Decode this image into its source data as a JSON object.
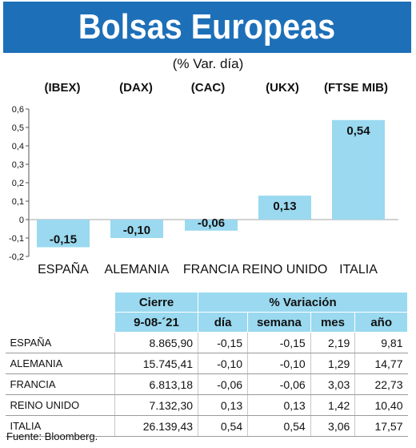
{
  "header": {
    "title": "Bolsas Europeas",
    "subtitle": "(% Var. día)"
  },
  "chart_data": {
    "type": "bar",
    "categories": [
      "ESPAÑA",
      "ALEMANIA",
      "FRANCIA",
      "REINO UNIDO",
      "ITALIA"
    ],
    "index_labels": [
      "(IBEX)",
      "(DAX)",
      "(CAC)",
      "(UKX)",
      "(FTSE MIB)"
    ],
    "values": [
      -0.15,
      -0.1,
      -0.06,
      0.13,
      0.54
    ],
    "value_labels": [
      "-0,15",
      "-0,10",
      "-0,06",
      "0,13",
      "0,54"
    ],
    "yticks": [
      0.6,
      0.5,
      0.4,
      0.3,
      0.2,
      0.1,
      0,
      -0.1,
      -0.2
    ],
    "ytick_labels": [
      "0,6",
      "0,5",
      "0,4",
      "0,3",
      "0,2",
      "0,1",
      "0",
      "-0,1",
      "-0,2"
    ],
    "ylim": [
      -0.2,
      0.6
    ],
    "bar_color": "#9ad9f0",
    "grid": false
  },
  "table": {
    "headers": {
      "cierre": "Cierre",
      "date": "9-08-´21",
      "variacion": "% Variación",
      "dia": "día",
      "semana": "semana",
      "mes": "mes",
      "ano": "año"
    },
    "rows": [
      {
        "name": "ESPAÑA",
        "cierre": "8.865,90",
        "dia": "-0,15",
        "semana": "-0,15",
        "mes": "2,19",
        "ano": "9,81"
      },
      {
        "name": "ALEMANIA",
        "cierre": "15.745,41",
        "dia": "-0,10",
        "semana": "-0,10",
        "mes": "1,29",
        "ano": "14,77"
      },
      {
        "name": "FRANCIA",
        "cierre": "6.813,18",
        "dia": "-0,06",
        "semana": "-0,06",
        "mes": "3,03",
        "ano": "22,73"
      },
      {
        "name": "REINO UNIDO",
        "cierre": "7.132,30",
        "dia": "0,13",
        "semana": "0,13",
        "mes": "1,42",
        "ano": "10,40"
      },
      {
        "name": "ITALIA",
        "cierre": "26.139,43",
        "dia": "0,54",
        "semana": "0,54",
        "mes": "3,06",
        "ano": "17,57"
      }
    ]
  },
  "footer": {
    "source": "Fuente: Bloomberg."
  },
  "colors": {
    "title_bg": "#1d6fb8",
    "accent": "#9ad9f0"
  }
}
